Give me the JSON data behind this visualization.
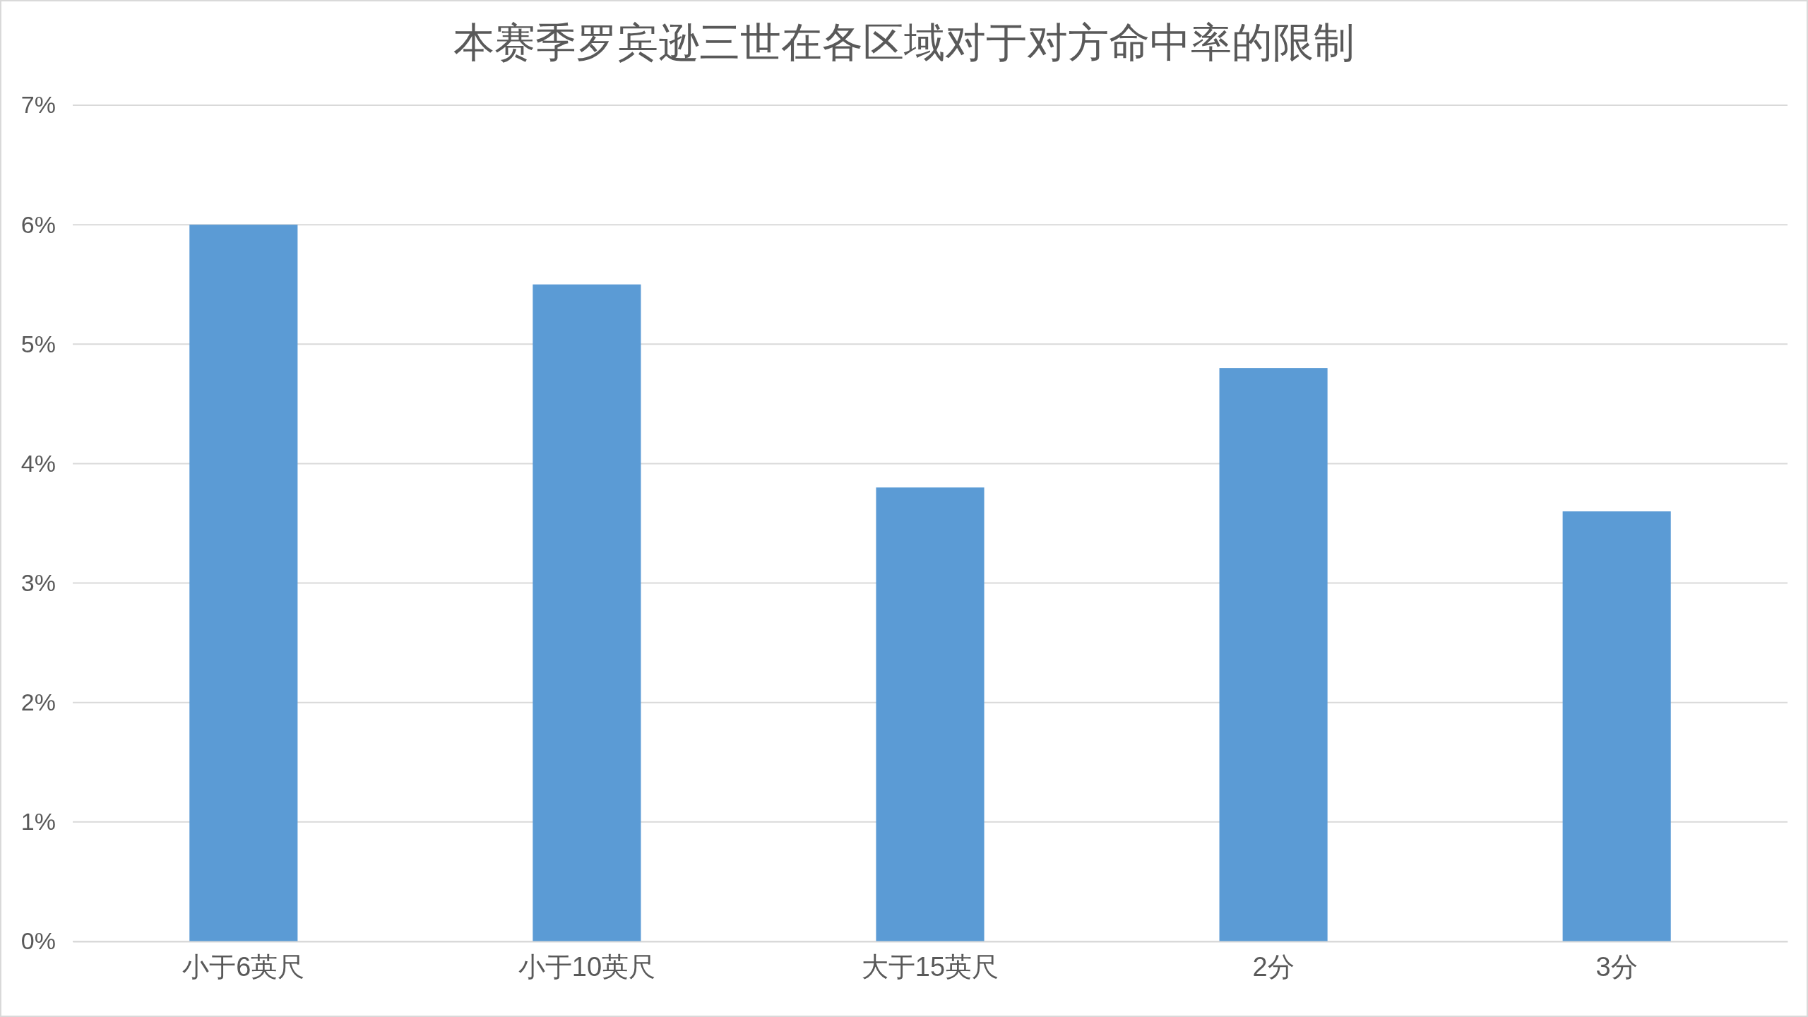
{
  "chart_data": {
    "type": "bar",
    "title": "本赛季罗宾逊三世在各区域对于对方命中率的限制",
    "categories": [
      "小于6英尺",
      "小于10英尺",
      "大于15英尺",
      "2分",
      "3分"
    ],
    "values": [
      6.0,
      5.5,
      3.8,
      4.8,
      3.6
    ],
    "color": "#5b9bd5",
    "ylim": [
      0,
      7
    ],
    "yticks": [
      {
        "value": 0,
        "label": "0%"
      },
      {
        "value": 1,
        "label": "1%"
      },
      {
        "value": 2,
        "label": "2%"
      },
      {
        "value": 3,
        "label": "3%"
      },
      {
        "value": 4,
        "label": "4%"
      },
      {
        "value": 5,
        "label": "5%"
      },
      {
        "value": 6,
        "label": "6%"
      },
      {
        "value": 7,
        "label": "7%"
      }
    ],
    "grid": "y",
    "legend": false
  }
}
